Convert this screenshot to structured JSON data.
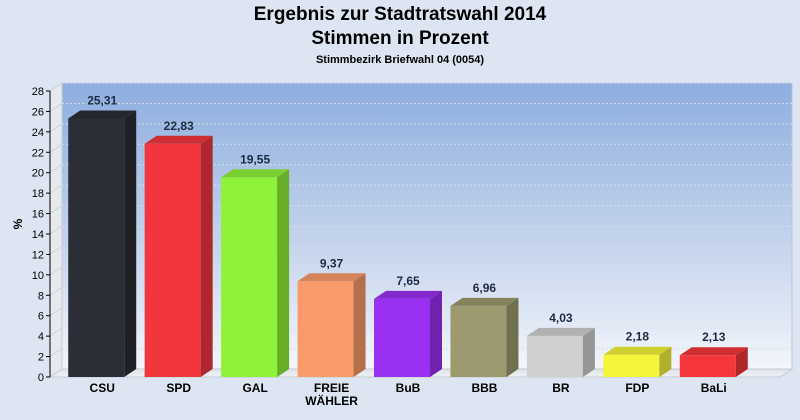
{
  "chart_data": {
    "type": "bar",
    "title": "Ergebnis zur Stadtratswahl 2014",
    "subtitle": "Stimmen in Prozent",
    "caption": "Stimmbezirk Briefwahl 04 (0054)",
    "ylabel": "%",
    "ylim": [
      0,
      28
    ],
    "yticks": [
      0,
      2,
      4,
      6,
      8,
      10,
      12,
      14,
      16,
      18,
      20,
      22,
      24,
      26,
      28
    ],
    "categories": [
      {
        "label": [
          "CSU"
        ],
        "value": 25.31,
        "value_label": "25,31",
        "color": "#2b2e36"
      },
      {
        "label": [
          "SPD"
        ],
        "value": 22.83,
        "value_label": "22,83",
        "color": "#f2363d"
      },
      {
        "label": [
          "GAL"
        ],
        "value": 19.55,
        "value_label": "19,55",
        "color": "#8ef238"
      },
      {
        "label": [
          "FREIE",
          "WÄHLER"
        ],
        "value": 9.37,
        "value_label": "9,37",
        "color": "#fa9a6a"
      },
      {
        "label": [
          "BuB"
        ],
        "value": 7.65,
        "value_label": "7,65",
        "color": "#9a30f2"
      },
      {
        "label": [
          "BBB"
        ],
        "value": 6.96,
        "value_label": "6,96",
        "color": "#9c9a6e"
      },
      {
        "label": [
          "BR"
        ],
        "value": 4.03,
        "value_label": "4,03",
        "color": "#d0d0d0"
      },
      {
        "label": [
          "FDP"
        ],
        "value": 2.18,
        "value_label": "2,18",
        "color": "#f5f53a"
      },
      {
        "label": [
          "BaLi"
        ],
        "value": 2.13,
        "value_label": "2,13",
        "color": "#f5363a"
      }
    ],
    "grid": true
  }
}
